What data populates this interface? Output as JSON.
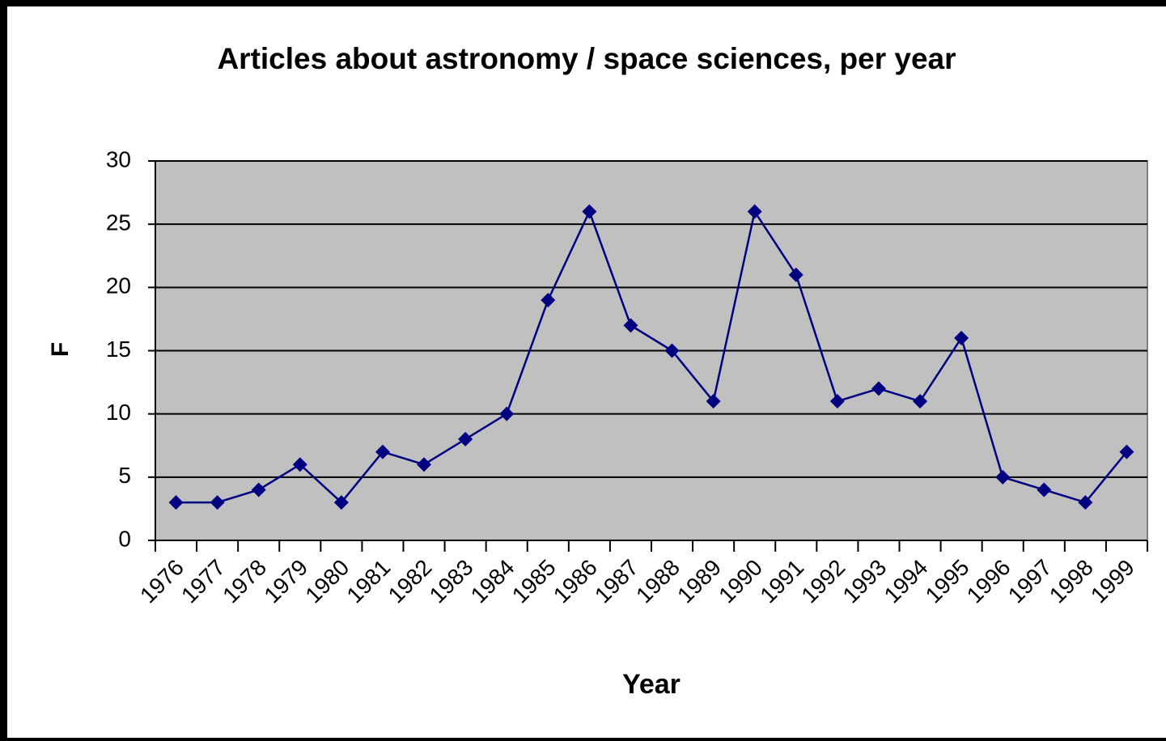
{
  "chart_data": {
    "type": "line",
    "title": "Articles about astronomy / space sciences, per year",
    "x_label": "Year",
    "y_label": "F",
    "categories": [
      "1976",
      "1977",
      "1978",
      "1979",
      "1980",
      "1981",
      "1982",
      "1983",
      "1984",
      "1985",
      "1986",
      "1987",
      "1988",
      "1989",
      "1990",
      "1991",
      "1992",
      "1993",
      "1994",
      "1995",
      "1996",
      "1997",
      "1998",
      "1999"
    ],
    "series": [
      {
        "name": "F",
        "color": "#000080",
        "values": [
          3,
          3,
          4,
          6,
          3,
          7,
          6,
          8,
          10,
          19,
          26,
          17,
          15,
          11,
          26,
          21,
          11,
          12,
          11,
          16,
          5,
          4,
          3,
          7
        ]
      }
    ],
    "ylim": [
      0,
      30
    ],
    "yticks": [
      0,
      5,
      10,
      15,
      20,
      25,
      30
    ],
    "grid": true
  }
}
